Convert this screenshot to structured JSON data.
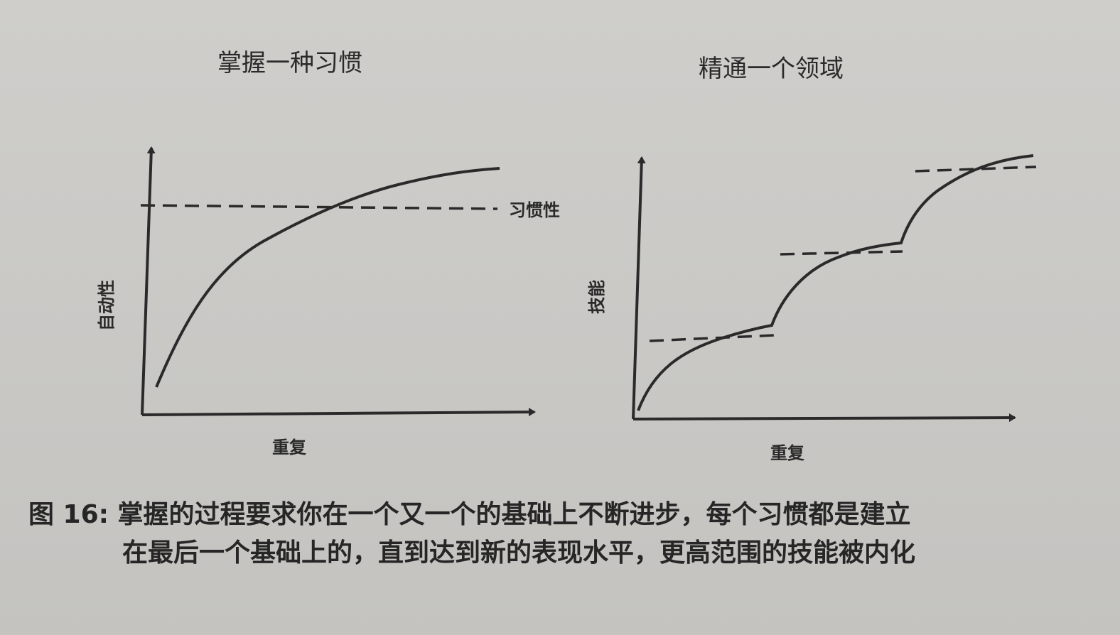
{
  "figures": [
    {
      "title": "掌握一种习惯",
      "x_label": "重复",
      "y_label": "自动性",
      "reference_label": "习惯性"
    },
    {
      "title": "精通一个领域",
      "x_label": "重复",
      "y_label": "技能"
    }
  ],
  "caption": {
    "line1": "图 16: 掌握的过程要求你在一个又一个的基础上不断进步，每个习惯都是建立",
    "line2": "在最后一个基础上的，直到达到新的表现水平，更高范围的技能被内化"
  },
  "colors": {
    "ink": "#2a2a2a",
    "paper": "#cccbc8"
  }
}
